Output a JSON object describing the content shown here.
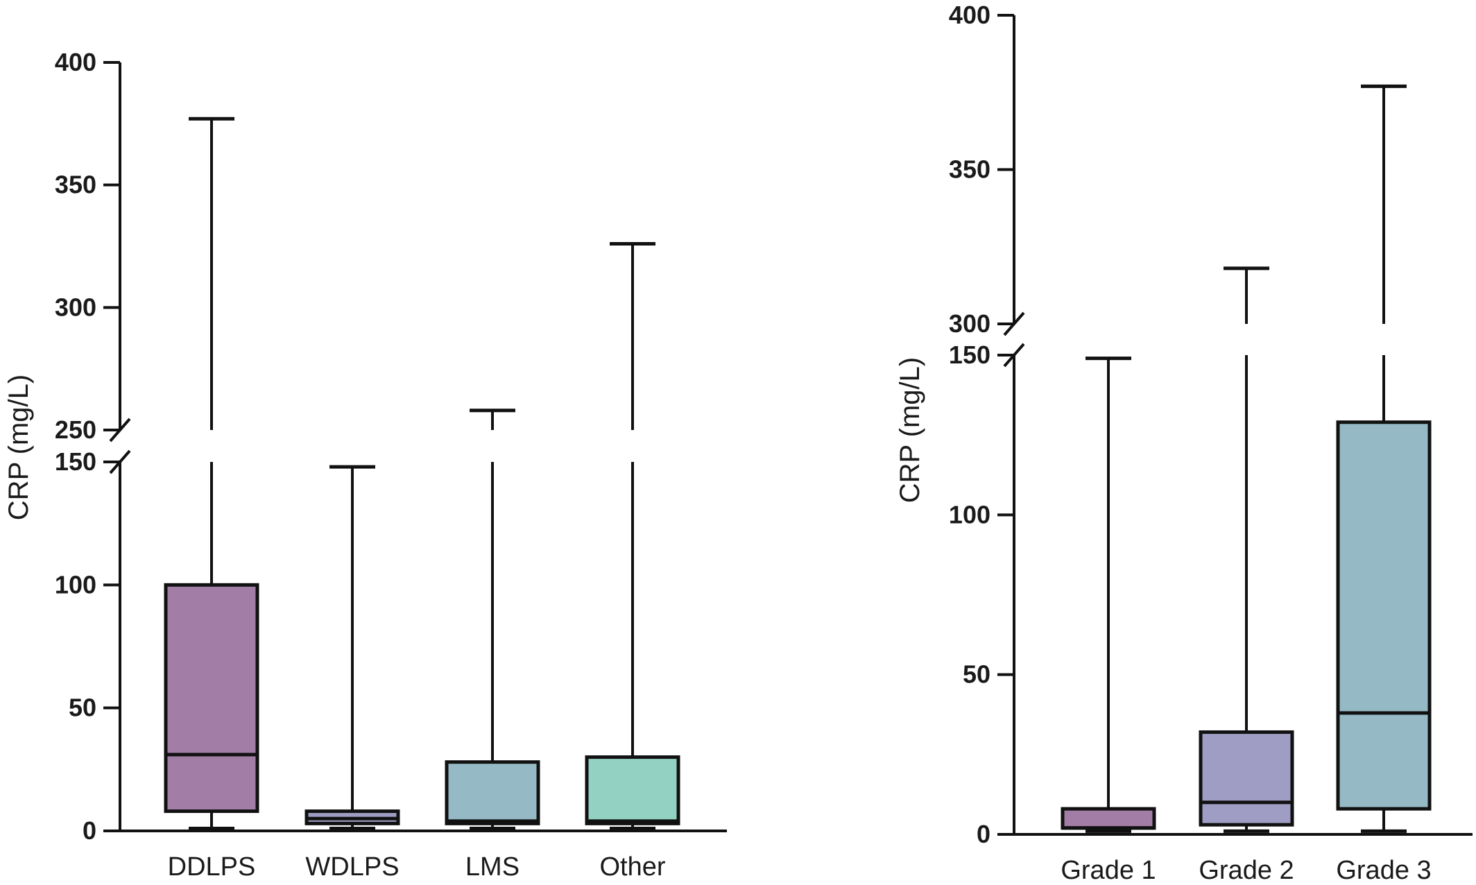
{
  "chart_data": [
    {
      "type": "boxplot",
      "ylabel": "CRP (mg/L)",
      "y_axis_break": {
        "lower_range": [
          0,
          150
        ],
        "upper_range": [
          250,
          400
        ]
      },
      "lower_ticks": [
        0,
        50,
        100,
        150
      ],
      "upper_ticks": [
        250,
        300,
        350,
        400
      ],
      "categories": [
        "DDLPS",
        "WDLPS",
        "LMS",
        "Other"
      ],
      "boxes": [
        {
          "category": "DDLPS",
          "min": 1,
          "q1": 8,
          "median": 31,
          "q3": 100,
          "max": 377,
          "color": "#a27ea6"
        },
        {
          "category": "WDLPS",
          "min": 1,
          "q1": 3,
          "median": 5,
          "q3": 8,
          "max": 148,
          "color": "#9f9dc3"
        },
        {
          "category": "LMS",
          "min": 1,
          "q1": 3,
          "median": 4,
          "q3": 28,
          "max": 258,
          "color": "#95bac6"
        },
        {
          "category": "Other",
          "min": 1,
          "q1": 3,
          "median": 4,
          "q3": 30,
          "max": 326,
          "color": "#93d2c2"
        }
      ]
    },
    {
      "type": "boxplot",
      "ylabel": "CRP (mg/L)",
      "y_axis_break": {
        "lower_range": [
          0,
          150
        ],
        "upper_range": [
          300,
          400
        ]
      },
      "lower_ticks": [
        0,
        50,
        100,
        150
      ],
      "upper_ticks": [
        300,
        350,
        400
      ],
      "categories": [
        "Grade 1",
        "Grade 2",
        "Grade 3"
      ],
      "boxes": [
        {
          "category": "Grade 1",
          "min": 1,
          "q1": 2,
          "median": 2,
          "q3": 8,
          "max": 149,
          "color": "#a27ea6"
        },
        {
          "category": "Grade 2",
          "min": 1,
          "q1": 3,
          "median": 10,
          "q3": 32,
          "max": 318,
          "color": "#9f9dc3"
        },
        {
          "category": "Grade 3",
          "min": 1,
          "q1": 8,
          "median": 38,
          "q3": 129,
          "max": 377,
          "color": "#95bac6"
        }
      ]
    }
  ]
}
